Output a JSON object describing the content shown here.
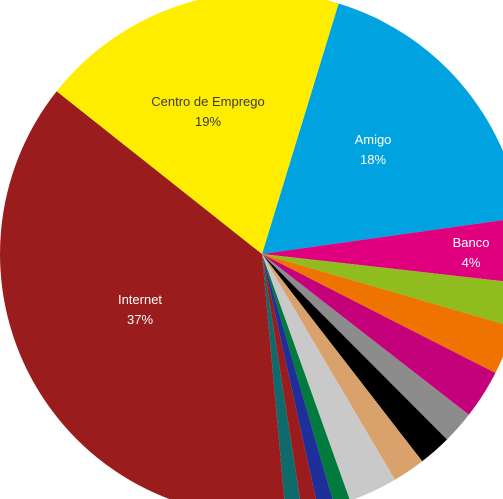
{
  "chart_data": {
    "type": "pie",
    "title": "",
    "start_angle_deg": 17,
    "slices": [
      {
        "label": "Amigo",
        "value": 18,
        "value_label": "18%",
        "color": "#00a3e0"
      },
      {
        "label": "Banco",
        "value": 4,
        "value_label": "4%",
        "color": "#e0007f"
      },
      {
        "label": "",
        "value": 2.7,
        "color": "#8fbc1e"
      },
      {
        "label": "",
        "value": 3,
        "color": "#ef7300"
      },
      {
        "label": "",
        "value": 3,
        "color": "#c4007a"
      },
      {
        "label": "",
        "value": 2,
        "color": "#8c8c8c"
      },
      {
        "label": "",
        "value": 2,
        "color": "#000000"
      },
      {
        "label": "",
        "value": 2,
        "color": "#d9a16b"
      },
      {
        "label": "",
        "value": 3,
        "color": "#c9c9c9"
      },
      {
        "label": "",
        "value": 1,
        "color": "#007a3d"
      },
      {
        "label": "",
        "value": 1,
        "color": "#1f2f9a"
      },
      {
        "label": "",
        "value": 1,
        "color": "#9b1c1c"
      },
      {
        "label": "",
        "value": 1,
        "color": "#0f6b6b"
      },
      {
        "label": "Internet",
        "value": 37,
        "value_label": "37%",
        "color": "#9b1c1c"
      },
      {
        "label": "Centro de Emprego",
        "value": 19,
        "value_label": "19%",
        "color": "#ffed00"
      }
    ]
  }
}
